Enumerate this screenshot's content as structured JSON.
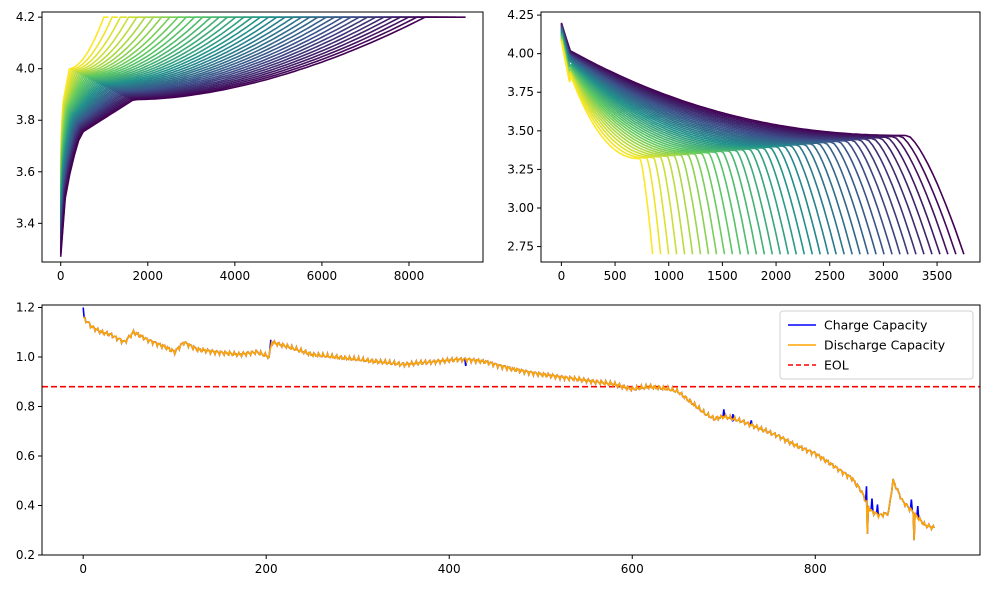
{
  "chart_data": [
    {
      "id": "charge_voltage",
      "type": "line",
      "title": "",
      "xlabel": "",
      "ylabel": "",
      "xlim": [
        -430,
        9700
      ],
      "ylim": [
        3.25,
        4.22
      ],
      "xticks": [
        "0",
        "2000",
        "4000",
        "6000",
        "8000"
      ],
      "yticks": [
        "3.4",
        "3.6",
        "3.8",
        "4.0",
        "4.2"
      ],
      "colormap": "viridis",
      "series_count": 40,
      "curve_x_end": {
        "first_cycle": 9300,
        "last_cycle": 1100
      },
      "v_start": 3.27,
      "v_knee": 3.75,
      "v_plateau": 3.88,
      "v_cutoff": 4.2
    },
    {
      "id": "discharge_voltage",
      "type": "line",
      "title": "",
      "xlabel": "",
      "ylabel": "",
      "xlim": [
        -190,
        3900
      ],
      "ylim": [
        2.65,
        4.27
      ],
      "xticks": [
        "0",
        "500",
        "1000",
        "1500",
        "2000",
        "2500",
        "3000",
        "3500"
      ],
      "yticks": [
        "2.75",
        "3.00",
        "3.25",
        "3.50",
        "3.75",
        "4.00",
        "4.25"
      ],
      "colormap": "viridis",
      "series_count": 40,
      "curve_x_end": {
        "first_cycle": 3750,
        "last_cycle": 850
      },
      "v_start": 4.2,
      "v_end": 2.7
    },
    {
      "id": "capacity_fade",
      "type": "line",
      "title": "",
      "xlabel": "",
      "ylabel": "",
      "xlim": [
        -45,
        980
      ],
      "ylim": [
        0.2,
        1.21
      ],
      "xticks": [
        "0",
        "200",
        "400",
        "600",
        "800"
      ],
      "yticks": [
        "0.2",
        "0.4",
        "0.6",
        "0.8",
        "1.0",
        "1.2"
      ],
      "eol": 0.88,
      "legend": [
        "Charge Capacity",
        "Discharge Capacity",
        "EOL"
      ],
      "legend_location": "upper right",
      "colors": {
        "charge": "#0000ff",
        "discharge": "#ffa500",
        "eol": "#ff0000"
      },
      "key_points": [
        [
          0,
          1.16
        ],
        [
          10,
          1.12
        ],
        [
          20,
          1.1
        ],
        [
          30,
          1.09
        ],
        [
          45,
          1.06
        ],
        [
          55,
          1.1
        ],
        [
          70,
          1.07
        ],
        [
          90,
          1.04
        ],
        [
          100,
          1.02
        ],
        [
          110,
          1.06
        ],
        [
          125,
          1.03
        ],
        [
          145,
          1.02
        ],
        [
          170,
          1.01
        ],
        [
          190,
          1.02
        ],
        [
          203,
          1.0
        ],
        [
          206,
          1.06
        ],
        [
          225,
          1.04
        ],
        [
          250,
          1.01
        ],
        [
          275,
          1.0
        ],
        [
          300,
          0.99
        ],
        [
          325,
          0.98
        ],
        [
          350,
          0.97
        ],
        [
          380,
          0.98
        ],
        [
          410,
          0.99
        ],
        [
          420,
          0.99
        ],
        [
          440,
          0.98
        ],
        [
          470,
          0.95
        ],
        [
          500,
          0.93
        ],
        [
          540,
          0.91
        ],
        [
          580,
          0.89
        ],
        [
          600,
          0.87
        ],
        [
          620,
          0.88
        ],
        [
          640,
          0.87
        ],
        [
          650,
          0.86
        ],
        [
          660,
          0.83
        ],
        [
          670,
          0.8
        ],
        [
          680,
          0.77
        ],
        [
          690,
          0.75
        ],
        [
          700,
          0.76
        ],
        [
          720,
          0.74
        ],
        [
          740,
          0.71
        ],
        [
          760,
          0.68
        ],
        [
          780,
          0.64
        ],
        [
          800,
          0.61
        ],
        [
          820,
          0.56
        ],
        [
          840,
          0.51
        ],
        [
          850,
          0.46
        ],
        [
          860,
          0.38
        ],
        [
          870,
          0.36
        ],
        [
          880,
          0.37
        ],
        [
          885,
          0.5
        ],
        [
          895,
          0.42
        ],
        [
          905,
          0.38
        ],
        [
          920,
          0.32
        ],
        [
          930,
          0.31
        ]
      ],
      "charge_spikes": [
        [
          0,
          0.04
        ],
        [
          205,
          0.03
        ],
        [
          418,
          -0.03
        ],
        [
          700,
          0.03
        ],
        [
          710,
          0.02
        ],
        [
          730,
          0.02
        ],
        [
          856,
          0.06
        ],
        [
          862,
          0.05
        ],
        [
          868,
          0.04
        ],
        [
          905,
          0.04
        ],
        [
          912,
          0.05
        ]
      ],
      "discharge_dips": [
        [
          857,
          -0.12
        ],
        [
          908,
          -0.1
        ]
      ]
    }
  ]
}
